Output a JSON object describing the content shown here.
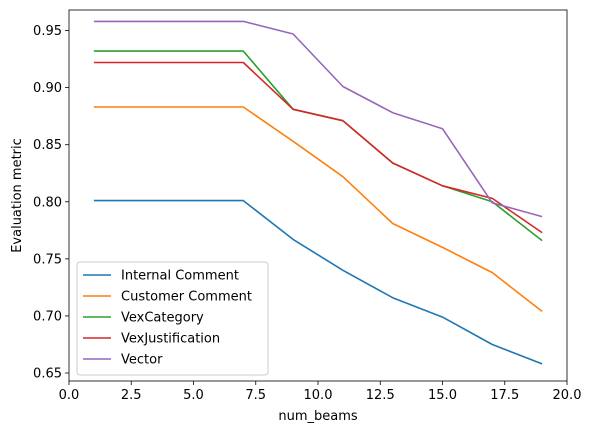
{
  "chart_data": {
    "type": "line",
    "title": "",
    "xlabel": "num_beams",
    "ylabel": "Evaluation metric",
    "xlim": [
      0,
      20
    ],
    "ylim": [
      0.643,
      0.968
    ],
    "xticks": [
      0,
      2.5,
      5,
      7.5,
      10,
      12.5,
      15,
      17.5,
      20
    ],
    "xtick_labels": [
      "0.0",
      "2.5",
      "5.0",
      "7.5",
      "10.0",
      "12.5",
      "15.0",
      "17.5",
      "20.0"
    ],
    "yticks": [
      0.65,
      0.7,
      0.75,
      0.8,
      0.85,
      0.9,
      0.95
    ],
    "ytick_labels": [
      "0.65",
      "0.70",
      "0.75",
      "0.80",
      "0.85",
      "0.90",
      "0.95"
    ],
    "grid": false,
    "legend_position": "lower-left",
    "x": [
      1,
      3,
      5,
      7,
      9,
      11,
      13,
      15,
      17,
      19
    ],
    "series": [
      {
        "name": "Internal Comment",
        "color": "#1f77b4",
        "values": [
          0.801,
          0.801,
          0.801,
          0.801,
          0.767,
          0.74,
          0.716,
          0.699,
          0.675,
          0.658
        ]
      },
      {
        "name": "Customer Comment",
        "color": "#ff7f0e",
        "values": [
          0.883,
          0.883,
          0.883,
          0.883,
          0.853,
          0.822,
          0.781,
          0.76,
          0.738,
          0.704
        ]
      },
      {
        "name": "VexCategory",
        "color": "#2ca02c",
        "values": [
          0.932,
          0.932,
          0.932,
          0.932,
          0.881,
          0.871,
          0.834,
          0.814,
          0.8,
          0.766
        ]
      },
      {
        "name": "VexJustification",
        "color": "#d62728",
        "values": [
          0.922,
          0.922,
          0.922,
          0.922,
          0.881,
          0.871,
          0.834,
          0.814,
          0.803,
          0.773
        ]
      },
      {
        "name": "Vector",
        "color": "#9467bd",
        "values": [
          0.958,
          0.958,
          0.958,
          0.958,
          0.947,
          0.901,
          0.878,
          0.864,
          0.799,
          0.787
        ]
      }
    ]
  }
}
